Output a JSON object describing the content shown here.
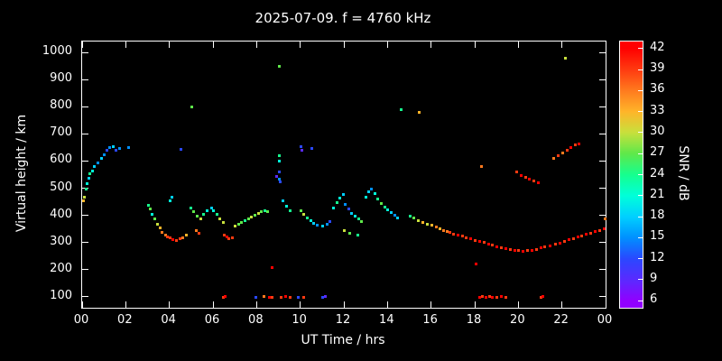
{
  "title": "2025-07-09. f = 4760 kHz",
  "colors": {
    "background": "#000000",
    "foreground": "#ffffff"
  },
  "chart_data": {
    "type": "scatter",
    "title": "2025-07-09. f = 4760 kHz",
    "xlabel": "UT Time / hrs",
    "ylabel": "Virtual height / km",
    "colorbar_label": "SNR / dB",
    "xlim": [
      0,
      24
    ],
    "ylim": [
      60,
      1040
    ],
    "clim": [
      5,
      43
    ],
    "grid": false,
    "x_tick_values": [
      0,
      2,
      4,
      6,
      8,
      10,
      12,
      14,
      16,
      18,
      20,
      22,
      24
    ],
    "x_tick_labels": [
      "00",
      "02",
      "04",
      "06",
      "08",
      "10",
      "12",
      "14",
      "16",
      "18",
      "20",
      "22",
      "00"
    ],
    "y_tick_values": [
      100,
      200,
      300,
      400,
      500,
      600,
      700,
      800,
      900,
      1000
    ],
    "colorbar_tick_values": [
      6,
      9,
      12,
      15,
      18,
      21,
      24,
      27,
      30,
      33,
      36,
      39,
      42
    ],
    "palette_stops": [
      {
        "v": 6,
        "c": "#9100ff"
      },
      {
        "v": 9,
        "c": "#5a2aff"
      },
      {
        "v": 12,
        "c": "#2a48ff"
      },
      {
        "v": 15,
        "c": "#0090ff"
      },
      {
        "v": 18,
        "c": "#00d0ff"
      },
      {
        "v": 21,
        "c": "#00ffd9"
      },
      {
        "v": 24,
        "c": "#16ff8e"
      },
      {
        "v": 27,
        "c": "#5fe84a"
      },
      {
        "v": 30,
        "c": "#c8e03c"
      },
      {
        "v": 33,
        "c": "#ffb429"
      },
      {
        "v": 36,
        "c": "#ff7a1e"
      },
      {
        "v": 39,
        "c": "#ff3a10"
      },
      {
        "v": 42,
        "c": "#ff0000"
      }
    ],
    "points": [
      [
        0.05,
        455,
        33
      ],
      [
        0.1,
        470,
        30
      ],
      [
        0.15,
        500,
        24
      ],
      [
        0.2,
        520,
        21
      ],
      [
        0.3,
        540,
        18
      ],
      [
        0.35,
        555,
        24
      ],
      [
        0.45,
        565,
        21
      ],
      [
        0.55,
        580,
        18
      ],
      [
        0.7,
        595,
        15
      ],
      [
        0.85,
        610,
        18
      ],
      [
        1.0,
        625,
        15
      ],
      [
        1.1,
        640,
        12
      ],
      [
        1.25,
        650,
        15
      ],
      [
        1.4,
        655,
        18
      ],
      [
        1.55,
        642,
        12
      ],
      [
        1.7,
        648,
        15
      ],
      [
        2.1,
        650,
        15
      ],
      [
        3.0,
        440,
        24
      ],
      [
        3.1,
        425,
        27
      ],
      [
        3.2,
        405,
        21
      ],
      [
        3.3,
        390,
        27
      ],
      [
        3.45,
        370,
        30
      ],
      [
        3.55,
        355,
        33
      ],
      [
        3.65,
        340,
        36
      ],
      [
        3.8,
        330,
        36
      ],
      [
        3.9,
        322,
        39
      ],
      [
        4.0,
        318,
        39
      ],
      [
        4.15,
        312,
        42
      ],
      [
        4.3,
        310,
        39
      ],
      [
        4.45,
        315,
        39
      ],
      [
        4.6,
        320,
        36
      ],
      [
        4.75,
        330,
        33
      ],
      [
        4.0,
        455,
        21
      ],
      [
        4.1,
        470,
        18
      ],
      [
        4.5,
        645,
        12
      ],
      [
        5.0,
        800,
        27
      ],
      [
        4.95,
        430,
        24
      ],
      [
        5.1,
        415,
        27
      ],
      [
        5.25,
        400,
        27
      ],
      [
        5.4,
        390,
        30
      ],
      [
        5.55,
        405,
        24
      ],
      [
        5.7,
        420,
        21
      ],
      [
        5.2,
        345,
        36
      ],
      [
        5.35,
        335,
        39
      ],
      [
        5.9,
        430,
        18
      ],
      [
        6.0,
        420,
        21
      ],
      [
        6.15,
        405,
        24
      ],
      [
        6.3,
        390,
        30
      ],
      [
        6.45,
        375,
        30
      ],
      [
        6.5,
        330,
        39
      ],
      [
        6.6,
        322,
        42
      ],
      [
        6.7,
        315,
        39
      ],
      [
        6.85,
        318,
        39
      ],
      [
        6.45,
        100,
        39
      ],
      [
        6.55,
        102,
        42
      ],
      [
        7.0,
        362,
        30
      ],
      [
        7.15,
        368,
        27
      ],
      [
        7.3,
        375,
        27
      ],
      [
        7.45,
        382,
        24
      ],
      [
        7.6,
        390,
        27
      ],
      [
        7.75,
        396,
        30
      ],
      [
        7.9,
        402,
        27
      ],
      [
        8.05,
        408,
        30
      ],
      [
        8.2,
        414,
        27
      ],
      [
        8.35,
        420,
        24
      ],
      [
        8.5,
        415,
        27
      ],
      [
        7.95,
        100,
        12
      ],
      [
        8.3,
        103,
        36
      ],
      [
        8.55,
        100,
        42
      ],
      [
        8.7,
        100,
        39
      ],
      [
        8.7,
        208,
        42
      ],
      [
        8.9,
        545,
        9
      ],
      [
        9.0,
        560,
        12
      ],
      [
        9.0,
        535,
        15
      ],
      [
        9.05,
        525,
        12
      ],
      [
        9.0,
        600,
        21
      ],
      [
        9.02,
        620,
        24
      ],
      [
        9.0,
        950,
        27
      ],
      [
        9.2,
        455,
        18
      ],
      [
        9.35,
        435,
        21
      ],
      [
        9.5,
        420,
        24
      ],
      [
        9.1,
        100,
        39
      ],
      [
        9.3,
        104,
        42
      ],
      [
        9.5,
        100,
        39
      ],
      [
        9.9,
        100,
        12
      ],
      [
        10.0,
        655,
        12
      ],
      [
        10.07,
        640,
        9
      ],
      [
        10.5,
        648,
        12
      ],
      [
        10.0,
        420,
        27
      ],
      [
        10.15,
        405,
        30
      ],
      [
        10.3,
        392,
        24
      ],
      [
        10.45,
        382,
        21
      ],
      [
        10.6,
        372,
        18
      ],
      [
        10.75,
        366,
        15
      ],
      [
        10.15,
        100,
        39
      ],
      [
        11.0,
        100,
        12
      ],
      [
        11.15,
        103,
        9
      ],
      [
        11.0,
        362,
        18
      ],
      [
        11.2,
        370,
        15
      ],
      [
        11.35,
        380,
        12
      ],
      [
        11.5,
        430,
        21
      ],
      [
        11.65,
        450,
        24
      ],
      [
        11.8,
        465,
        21
      ],
      [
        11.95,
        478,
        18
      ],
      [
        12.05,
        442,
        15
      ],
      [
        12.2,
        425,
        12
      ],
      [
        12.35,
        408,
        18
      ],
      [
        12.5,
        398,
        21
      ],
      [
        12.65,
        388,
        24
      ],
      [
        12.8,
        380,
        27
      ],
      [
        12.0,
        345,
        30
      ],
      [
        12.25,
        335,
        27
      ],
      [
        12.6,
        330,
        24
      ],
      [
        13.0,
        470,
        21
      ],
      [
        13.1,
        488,
        18
      ],
      [
        13.25,
        500,
        15
      ],
      [
        13.4,
        482,
        21
      ],
      [
        13.55,
        462,
        24
      ],
      [
        13.7,
        445,
        27
      ],
      [
        13.85,
        432,
        24
      ],
      [
        14.0,
        422,
        21
      ],
      [
        14.15,
        412,
        18
      ],
      [
        14.3,
        402,
        15
      ],
      [
        14.45,
        392,
        18
      ],
      [
        14.6,
        790,
        24
      ],
      [
        15.0,
        400,
        24
      ],
      [
        15.2,
        392,
        27
      ],
      [
        15.4,
        382,
        30
      ],
      [
        15.45,
        780,
        33
      ],
      [
        15.6,
        376,
        33
      ],
      [
        15.8,
        370,
        30
      ],
      [
        16.0,
        366,
        33
      ],
      [
        16.2,
        360,
        36
      ],
      [
        16.4,
        352,
        33
      ],
      [
        16.55,
        346,
        36
      ],
      [
        16.7,
        342,
        36
      ],
      [
        16.85,
        338,
        39
      ],
      [
        17.0,
        334,
        39
      ],
      [
        17.2,
        330,
        42
      ],
      [
        17.4,
        325,
        39
      ],
      [
        17.6,
        320,
        39
      ],
      [
        17.8,
        315,
        42
      ],
      [
        18.0,
        310,
        39
      ],
      [
        18.2,
        306,
        42
      ],
      [
        18.4,
        301,
        39
      ],
      [
        18.6,
        296,
        42
      ],
      [
        18.8,
        291,
        39
      ],
      [
        19.0,
        286,
        42
      ],
      [
        19.2,
        282,
        39
      ],
      [
        19.4,
        279,
        42
      ],
      [
        19.6,
        276,
        39
      ],
      [
        19.8,
        273,
        42
      ],
      [
        20.0,
        271,
        39
      ],
      [
        20.2,
        270,
        42
      ],
      [
        20.4,
        272,
        39
      ],
      [
        20.6,
        274,
        42
      ],
      [
        20.8,
        277,
        39
      ],
      [
        21.0,
        281,
        42
      ],
      [
        21.2,
        285,
        39
      ],
      [
        21.45,
        290,
        42
      ],
      [
        21.7,
        295,
        39
      ],
      [
        21.9,
        300,
        42
      ],
      [
        22.1,
        306,
        39
      ],
      [
        22.3,
        311,
        42
      ],
      [
        22.5,
        316,
        39
      ],
      [
        22.7,
        321,
        42
      ],
      [
        22.9,
        326,
        39
      ],
      [
        23.1,
        331,
        42
      ],
      [
        23.3,
        336,
        39
      ],
      [
        23.5,
        341,
        42
      ],
      [
        23.7,
        346,
        39
      ],
      [
        23.9,
        352,
        42
      ],
      [
        23.97,
        388,
        36
      ],
      [
        18.05,
        222,
        42
      ],
      [
        18.2,
        100,
        42
      ],
      [
        18.35,
        102,
        39
      ],
      [
        18.5,
        100,
        42
      ],
      [
        18.65,
        103,
        39
      ],
      [
        18.8,
        100,
        42
      ],
      [
        19.0,
        100,
        39
      ],
      [
        19.2,
        102,
        42
      ],
      [
        19.4,
        100,
        39
      ],
      [
        21.0,
        100,
        39
      ],
      [
        21.1,
        102,
        42
      ],
      [
        18.3,
        582,
        36
      ],
      [
        19.9,
        562,
        39
      ],
      [
        20.1,
        550,
        42
      ],
      [
        20.3,
        542,
        39
      ],
      [
        20.5,
        535,
        42
      ],
      [
        20.7,
        528,
        39
      ],
      [
        20.9,
        522,
        42
      ],
      [
        21.6,
        612,
        36
      ],
      [
        21.8,
        622,
        39
      ],
      [
        22.0,
        632,
        36
      ],
      [
        22.2,
        642,
        39
      ],
      [
        22.4,
        652,
        42
      ],
      [
        22.6,
        660,
        39
      ],
      [
        22.75,
        666,
        42
      ],
      [
        22.15,
        980,
        30
      ]
    ]
  }
}
